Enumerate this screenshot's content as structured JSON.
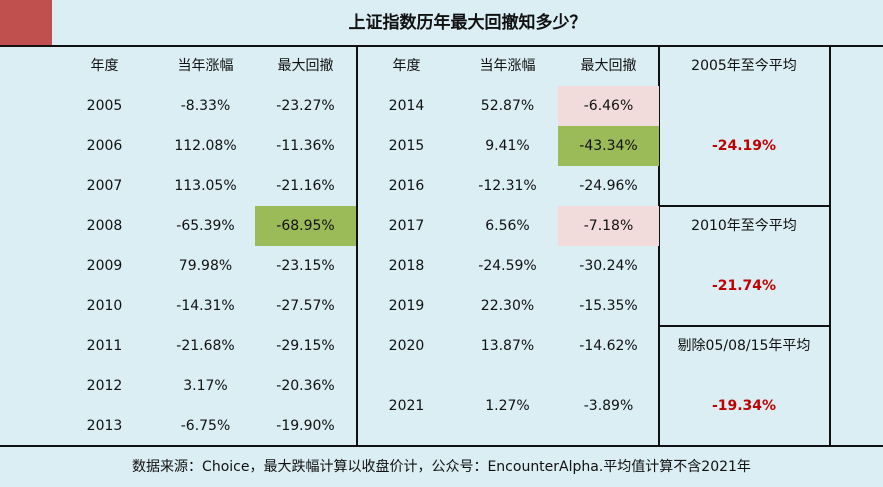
{
  "title": "上证指数历年最大回撤知多少？",
  "headers": [
    "年度",
    "当年涨幅",
    "最大回撤"
  ],
  "left_rows": [
    [
      "2005",
      "-8.33%",
      "-23.27%"
    ],
    [
      "2006",
      "112.08%",
      "-11.36%"
    ],
    [
      "2007",
      "113.05%",
      "-21.16%"
    ],
    [
      "2008",
      "-65.39%",
      "-68.95%"
    ],
    [
      "2009",
      "79.98%",
      "-23.15%"
    ],
    [
      "2010",
      "-14.31%",
      "-27.57%"
    ],
    [
      "2011",
      "-21.68%",
      "-29.15%"
    ],
    [
      "2012",
      "3.17%",
      "-20.36%"
    ],
    [
      "2013",
      "-6.75%",
      "-19.90%"
    ]
  ],
  "right_rows": [
    [
      "2014",
      "52.87%",
      "-6.46%"
    ],
    [
      "2015",
      "9.41%",
      "-43.34%"
    ],
    [
      "2016",
      "-12.31%",
      "-24.96%"
    ],
    [
      "2017",
      "6.56%",
      "-7.18%"
    ],
    [
      "2018",
      "-24.59%",
      "-30.24%"
    ],
    [
      "2019",
      "22.30%",
      "-15.35%"
    ],
    [
      "2020",
      "13.87%",
      "-14.62%"
    ],
    [
      "2021",
      "1.27%",
      "-3.89%"
    ]
  ],
  "averages": [
    {
      "label": "2005年至今平均",
      "value": "-24.19%"
    },
    {
      "label": "2010年至今平均",
      "value": "-21.74%"
    },
    {
      "label": "剔除05/08/15年平均",
      "value": "-19.34%"
    }
  ],
  "footer": "数据来源：Choice，最大跌幅计算以收盘价计，公众号：EncounterAlpha.平均值计算不含2021年",
  "colors": {
    "accent": "#c0504d",
    "bg": "#daeef3",
    "green": "#9bbb59",
    "pink": "#f2dcdb",
    "value_red": "#c00000"
  }
}
